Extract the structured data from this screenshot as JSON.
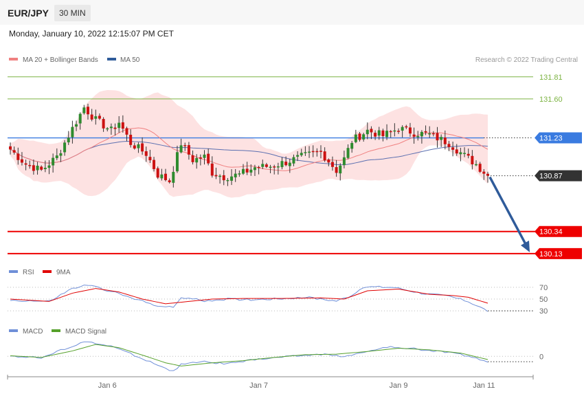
{
  "header": {
    "symbol": "EUR/JPY",
    "timeframe": "30 MIN",
    "datetime": "Monday, January 10, 2022 12:15:07 PM CET"
  },
  "legends": {
    "price": [
      {
        "label": "MA 20 + Bollinger Bands",
        "color": "#f08080"
      },
      {
        "label": "MA 50",
        "color": "#2f5b9a"
      }
    ],
    "rsi": [
      {
        "label": "RSI",
        "color": "#6f8fd8"
      },
      {
        "label": "9MA",
        "color": "#e00000"
      }
    ],
    "macd": [
      {
        "label": "MACD",
        "color": "#6f8fd8"
      },
      {
        "label": "MACD Signal",
        "color": "#55a02a"
      }
    ]
  },
  "credit": "Research © 2022 Trading Central",
  "colors": {
    "up": "#2e8b2e",
    "down": "#cc1111",
    "bollinger_fill": "#fde2e2",
    "ma20": "#f08080",
    "ma50": "#5b6fb0",
    "pivot": "#3a7be0",
    "support": "#ee0000",
    "resistance": "#7cb342",
    "forecast_arrow": "#2f5b9a"
  },
  "chart_data": [
    {
      "type": "candlestick",
      "title": "EUR/JPY 30 MIN",
      "x_ticks": [
        "Jan 6",
        "Jan 7",
        "Jan 9",
        "Jan 11"
      ],
      "ylim": [
        130.07,
        131.9
      ],
      "levels": [
        {
          "value": 131.81,
          "label": "131.81",
          "kind": "resistance"
        },
        {
          "value": 131.6,
          "label": "131.60",
          "kind": "resistance"
        },
        {
          "value": 131.23,
          "label": "131.23",
          "kind": "pivot"
        },
        {
          "value": 130.87,
          "label": "130.87",
          "kind": "last"
        },
        {
          "value": 130.34,
          "label": "130.34",
          "kind": "support"
        },
        {
          "value": 130.13,
          "label": "130.13",
          "kind": "support"
        }
      ],
      "forecast": {
        "from": 130.87,
        "to": 130.13
      },
      "close_keypoints": [
        [
          0,
          131.12
        ],
        [
          4,
          130.98
        ],
        [
          8,
          130.92
        ],
        [
          12,
          131.05
        ],
        [
          16,
          131.32
        ],
        [
          19,
          131.52
        ],
        [
          22,
          131.4
        ],
        [
          26,
          131.3
        ],
        [
          28,
          131.38
        ],
        [
          31,
          131.18
        ],
        [
          35,
          131.08
        ],
        [
          38,
          130.88
        ],
        [
          41,
          130.82
        ],
        [
          44,
          131.18
        ],
        [
          47,
          131.02
        ],
        [
          50,
          131.05
        ],
        [
          52,
          130.9
        ],
        [
          55,
          130.86
        ],
        [
          59,
          130.88
        ],
        [
          63,
          130.95
        ],
        [
          67,
          130.96
        ],
        [
          71,
          131.0
        ],
        [
          75,
          131.05
        ],
        [
          80,
          131.1
        ],
        [
          84,
          130.92
        ],
        [
          86,
          131.03
        ],
        [
          88,
          131.2
        ],
        [
          92,
          131.3
        ],
        [
          96,
          131.25
        ],
        [
          100,
          131.32
        ],
        [
          104,
          131.28
        ],
        [
          108,
          131.26
        ],
        [
          113,
          131.18
        ],
        [
          117,
          131.06
        ],
        [
          120,
          130.98
        ],
        [
          123,
          130.87
        ]
      ]
    },
    {
      "type": "line",
      "title": "RSI",
      "y_ticks": [
        70,
        50,
        30
      ],
      "ylim": [
        15,
        85
      ],
      "series": [
        {
          "name": "RSI",
          "keypoints": [
            [
              0,
              48
            ],
            [
              10,
              46
            ],
            [
              16,
              68
            ],
            [
              20,
              74
            ],
            [
              26,
              63
            ],
            [
              31,
              52
            ],
            [
              38,
              39
            ],
            [
              42,
              35
            ],
            [
              44,
              53
            ],
            [
              50,
              47
            ],
            [
              56,
              50
            ],
            [
              62,
              49
            ],
            [
              70,
              51
            ],
            [
              76,
              53
            ],
            [
              84,
              47
            ],
            [
              87,
              54
            ],
            [
              92,
              71
            ],
            [
              99,
              70
            ],
            [
              106,
              60
            ],
            [
              113,
              55
            ],
            [
              118,
              46
            ],
            [
              123,
              30
            ]
          ]
        },
        {
          "name": "9MA",
          "keypoints": [
            [
              0,
              50
            ],
            [
              10,
              46
            ],
            [
              16,
              60
            ],
            [
              22,
              68
            ],
            [
              28,
              62
            ],
            [
              34,
              50
            ],
            [
              40,
              42
            ],
            [
              46,
              46
            ],
            [
              52,
              50
            ],
            [
              60,
              51
            ],
            [
              70,
              51
            ],
            [
              80,
              52
            ],
            [
              86,
              50
            ],
            [
              92,
              64
            ],
            [
              100,
              67
            ],
            [
              108,
              58
            ],
            [
              114,
              56
            ],
            [
              118,
              53
            ],
            [
              123,
              43
            ]
          ]
        }
      ]
    },
    {
      "type": "line",
      "title": "MACD",
      "y_ticks": [
        0
      ],
      "ylim": [
        -0.34,
        0.36
      ],
      "series": [
        {
          "name": "MACD",
          "keypoints": [
            [
              0,
              0.01
            ],
            [
              8,
              -0.03
            ],
            [
              14,
              0.14
            ],
            [
              19,
              0.27
            ],
            [
              26,
              0.19
            ],
            [
              32,
              0.02
            ],
            [
              38,
              -0.16
            ],
            [
              42,
              -0.28
            ],
            [
              44,
              -0.15
            ],
            [
              50,
              -0.1
            ],
            [
              56,
              -0.14
            ],
            [
              64,
              -0.05
            ],
            [
              72,
              0.0
            ],
            [
              80,
              0.04
            ],
            [
              86,
              0.0
            ],
            [
              91,
              0.07
            ],
            [
              97,
              0.17
            ],
            [
              104,
              0.14
            ],
            [
              112,
              0.08
            ],
            [
              118,
              0.01
            ],
            [
              123,
              -0.1
            ]
          ]
        },
        {
          "name": "MACD Signal",
          "keypoints": [
            [
              0,
              0.01
            ],
            [
              8,
              -0.02
            ],
            [
              16,
              0.1
            ],
            [
              22,
              0.22
            ],
            [
              28,
              0.16
            ],
            [
              35,
              0.0
            ],
            [
              40,
              -0.12
            ],
            [
              44,
              -0.18
            ],
            [
              52,
              -0.12
            ],
            [
              60,
              -0.08
            ],
            [
              68,
              -0.02
            ],
            [
              76,
              0.03
            ],
            [
              84,
              0.04
            ],
            [
              92,
              0.09
            ],
            [
              100,
              0.15
            ],
            [
              108,
              0.12
            ],
            [
              116,
              0.06
            ],
            [
              123,
              -0.06
            ]
          ]
        }
      ]
    }
  ]
}
